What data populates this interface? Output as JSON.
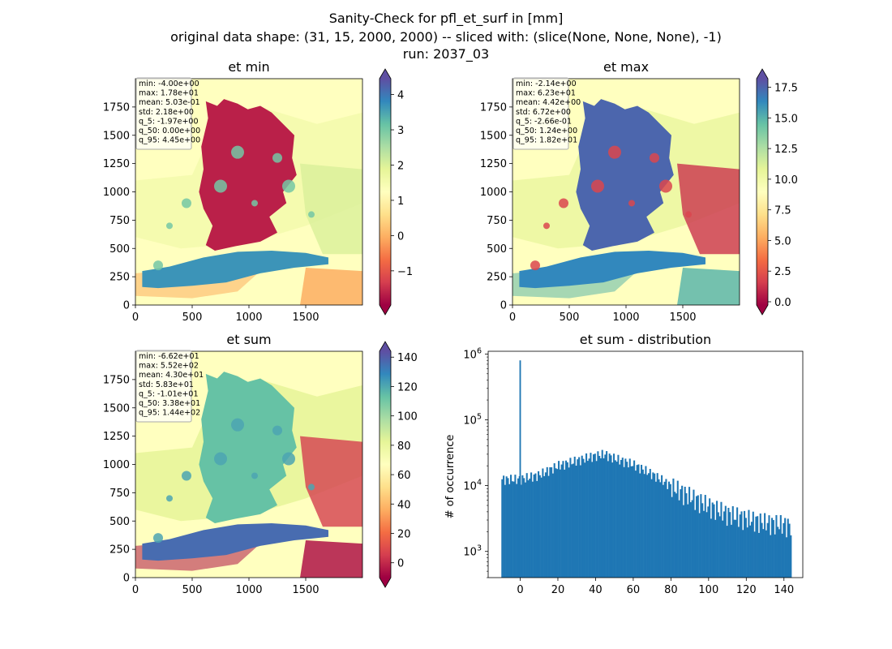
{
  "figure": {
    "title_lines": [
      "Sanity-Check for pfl_et_surf in [mm]",
      "original data shape: (31, 15, 2000, 2000) -- sliced with: (slice(None, None, None), -1)",
      "run: 2037_03"
    ]
  },
  "chart_data": [
    {
      "type": "heatmap",
      "title": "et min",
      "colormap": "Spectral",
      "xlim": [
        0,
        2000
      ],
      "ylim": [
        0,
        2000
      ],
      "x_ticks": [
        0,
        500,
        1000,
        1500
      ],
      "y_ticks": [
        0,
        250,
        500,
        750,
        1000,
        1250,
        1500,
        1750
      ],
      "colorbar_range": [
        -1.97,
        4.45
      ],
      "colorbar_ticks": [
        "4",
        "3",
        "2",
        "1",
        "0",
        "−1"
      ],
      "colorbar_tick_values": [
        4,
        3,
        2,
        1,
        0,
        -1
      ],
      "stats": [
        "min: -4.00e+00",
        "max: 1.78e+01",
        "mean: 5.03e-01",
        "std: 2.18e+00",
        "q_5: -1.97e+00",
        "q_50: 0.00e+00",
        "q_95: 4.45e+00"
      ]
    },
    {
      "type": "heatmap",
      "title": "et max",
      "colormap": "Spectral",
      "xlim": [
        0,
        2000
      ],
      "ylim": [
        0,
        2000
      ],
      "x_ticks": [
        0,
        500,
        1000,
        1500
      ],
      "y_ticks": [
        0,
        250,
        500,
        750,
        1000,
        1250,
        1500,
        1750
      ],
      "colorbar_range": [
        -0.266,
        18.2
      ],
      "colorbar_ticks": [
        "17.5",
        "15.0",
        "12.5",
        "10.0",
        "7.5",
        "5.0",
        "2.5",
        "0.0"
      ],
      "colorbar_tick_values": [
        17.5,
        15.0,
        12.5,
        10.0,
        7.5,
        5.0,
        2.5,
        0.0
      ],
      "stats": [
        "min: -2.14e+00",
        "max: 6.23e+01",
        "mean: 4.42e+00",
        "std: 6.72e+00",
        "q_5: -2.66e-01",
        "q_50: 1.24e+00",
        "q_95: 1.82e+01"
      ]
    },
    {
      "type": "heatmap",
      "title": "et sum",
      "colormap": "Spectral",
      "xlim": [
        0,
        2000
      ],
      "ylim": [
        0,
        2000
      ],
      "x_ticks": [
        0,
        500,
        1000,
        1500
      ],
      "y_ticks": [
        0,
        250,
        500,
        750,
        1000,
        1250,
        1500,
        1750
      ],
      "colorbar_range": [
        -10.1,
        144
      ],
      "colorbar_ticks": [
        "140",
        "120",
        "100",
        "80",
        "60",
        "40",
        "20",
        "0"
      ],
      "colorbar_tick_values": [
        140,
        120,
        100,
        80,
        60,
        40,
        20,
        0
      ],
      "stats": [
        "min: -6.62e+01",
        "max: 5.52e+02",
        "mean: 4.30e+01",
        "std: 5.83e+01",
        "q_5: -1.01e+01",
        "q_50: 3.38e+01",
        "q_95: 1.44e+02"
      ]
    },
    {
      "type": "bar",
      "title": "et sum - distribution",
      "xlabel": "",
      "ylabel": "# of occurrence",
      "yscale": "log",
      "xlim": [
        -17,
        150
      ],
      "ylim": [
        400,
        1100000
      ],
      "x_ticks": [
        0,
        20,
        40,
        60,
        80,
        100,
        120,
        140
      ],
      "y_ticks": [
        1000,
        10000,
        100000,
        1000000
      ],
      "color": "#1f77b4",
      "bin_width": 0.77,
      "spike": {
        "x": 0,
        "value": 800000
      },
      "bins": {
        "x": [
          -10,
          0,
          10,
          20,
          30,
          40,
          45,
          50,
          60,
          70,
          80,
          90,
          100,
          110,
          120,
          130,
          140,
          143.5
        ],
        "count": [
          12500,
          12500,
          14500,
          20000,
          24000,
          28500,
          30000,
          26000,
          21000,
          15000,
          10000,
          7000,
          5000,
          3800,
          3200,
          2800,
          2600,
          2500
        ]
      }
    }
  ]
}
